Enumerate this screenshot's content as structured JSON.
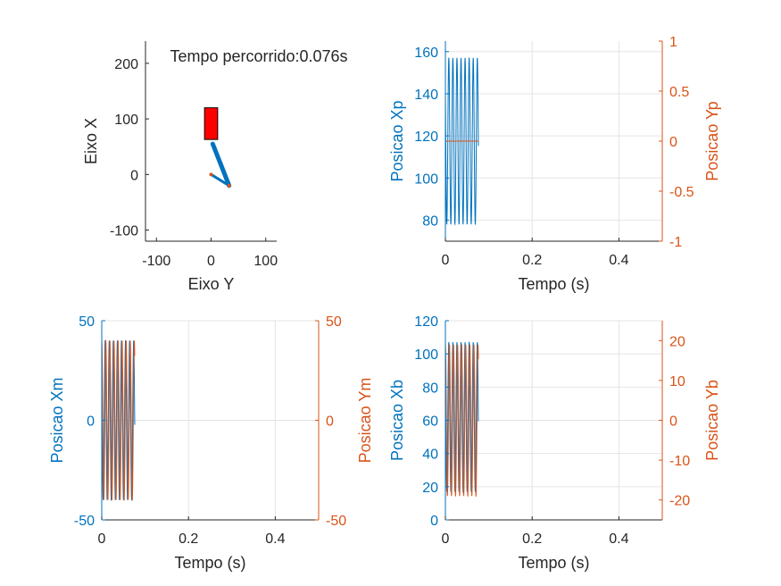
{
  "colors": {
    "blue": "#0072BD",
    "orange": "#D95319",
    "grid": "#e4e4e4",
    "axis": "#262626",
    "red_block": "#ff0000"
  },
  "chart_data": [
    {
      "type": "line",
      "id": "mechanism",
      "title": "Tempo percorrido:0.076s",
      "xlabel": "Eixo Y",
      "ylabel": "Eixo X",
      "xlim": [
        -120,
        120
      ],
      "ylim": [
        -120,
        240
      ],
      "xticks": [
        -100,
        0,
        100
      ],
      "yticks": [
        -100,
        0,
        100,
        200
      ],
      "xtick_labels": [
        "-100",
        "0",
        "100"
      ],
      "ytick_labels": [
        "-100",
        "0",
        "100",
        "200"
      ],
      "grid": false,
      "block": {
        "x_range": [
          -12,
          12
        ],
        "y_range": [
          63,
          120
        ]
      },
      "links": [
        {
          "x": [
            33,
            3
          ],
          "y": [
            -20,
            55
          ]
        },
        {
          "x": [
            0,
            33
          ],
          "y": [
            0,
            -20
          ]
        }
      ],
      "joints": [
        {
          "x": 0,
          "y": 0
        },
        {
          "x": 33,
          "y": -20
        }
      ]
    },
    {
      "type": "line",
      "id": "xp_yp",
      "xlabel": "Tempo (s)",
      "ylabel_left": "Posicao Xp",
      "ylabel_right": "Posicao Yp",
      "xlim": [
        0,
        0.5
      ],
      "ylim_left": [
        70,
        165
      ],
      "ylim_right": [
        -1,
        1
      ],
      "xticks": [
        0,
        0.2,
        0.4
      ],
      "xtick_labels": [
        "0",
        "0.2",
        "0.4"
      ],
      "yticks_left": [
        80,
        100,
        120,
        140,
        160
      ],
      "ytick_labels_left": [
        "80",
        "100",
        "120",
        "140",
        "160"
      ],
      "yticks_right": [
        -1,
        -0.5,
        0,
        0.5,
        1
      ],
      "ytick_labels_right": [
        "-1",
        "-0.5",
        "0",
        "0.5",
        "1"
      ],
      "grid": true,
      "series": [
        {
          "axis": "left",
          "color": "blue",
          "t_end": 0.076,
          "cycles": 8.1,
          "center": 117.5,
          "amplitude": 39.5,
          "phase": 1.0
        },
        {
          "axis": "right",
          "color": "orange",
          "t_end": 0.076,
          "constant": 0
        }
      ]
    },
    {
      "type": "line",
      "id": "xm_ym",
      "xlabel": "Tempo (s)",
      "ylabel_left": "Posicao Xm",
      "ylabel_right": "Posicao Ym",
      "xlim": [
        0,
        0.5
      ],
      "ylim_left": [
        -50,
        50
      ],
      "ylim_right": [
        -50,
        50
      ],
      "xticks": [
        0,
        0.2,
        0.4
      ],
      "xtick_labels": [
        "0",
        "0.2",
        "0.4"
      ],
      "yticks_left": [
        -50,
        0,
        50
      ],
      "ytick_labels_left": [
        "-50",
        "0",
        "50"
      ],
      "yticks_right": [
        -50,
        0,
        50
      ],
      "ytick_labels_right": [
        "-50",
        "0",
        "50"
      ],
      "grid": true,
      "series": [
        {
          "axis": "left",
          "color": "blue",
          "t_end": 0.076,
          "cycles": 8.1,
          "center": 0,
          "amplitude": 40,
          "phase": 1.0
        },
        {
          "axis": "right",
          "color": "orange",
          "t_end": 0.076,
          "cycles": 8.1,
          "center": 0,
          "amplitude": 40,
          "phase": 0.0
        }
      ]
    },
    {
      "type": "line",
      "id": "xb_yb",
      "xlabel": "Tempo (s)",
      "ylabel_left": "Posicao Xb",
      "ylabel_right": "Posicao Yb",
      "xlim": [
        0,
        0.5
      ],
      "ylim_left": [
        0,
        120
      ],
      "ylim_right": [
        -25,
        25
      ],
      "xticks": [
        0,
        0.2,
        0.4
      ],
      "xtick_labels": [
        "0",
        "0.2",
        "0.4"
      ],
      "yticks_left": [
        0,
        20,
        40,
        60,
        80,
        100,
        120
      ],
      "ytick_labels_left": [
        "0",
        "20",
        "40",
        "60",
        "80",
        "100",
        "120"
      ],
      "yticks_right": [
        -20,
        -10,
        0,
        10,
        20
      ],
      "ytick_labels_right": [
        "-20",
        "-10",
        "0",
        "10",
        "20"
      ],
      "grid": true,
      "series": [
        {
          "axis": "left",
          "color": "blue",
          "t_end": 0.076,
          "cycles": 8.1,
          "center": 62,
          "amplitude": 45,
          "phase": 1.0
        },
        {
          "axis": "right",
          "color": "orange",
          "t_end": 0.076,
          "cycles": 8.1,
          "center": 0,
          "amplitude": 19,
          "phase": 0.0
        }
      ]
    }
  ]
}
